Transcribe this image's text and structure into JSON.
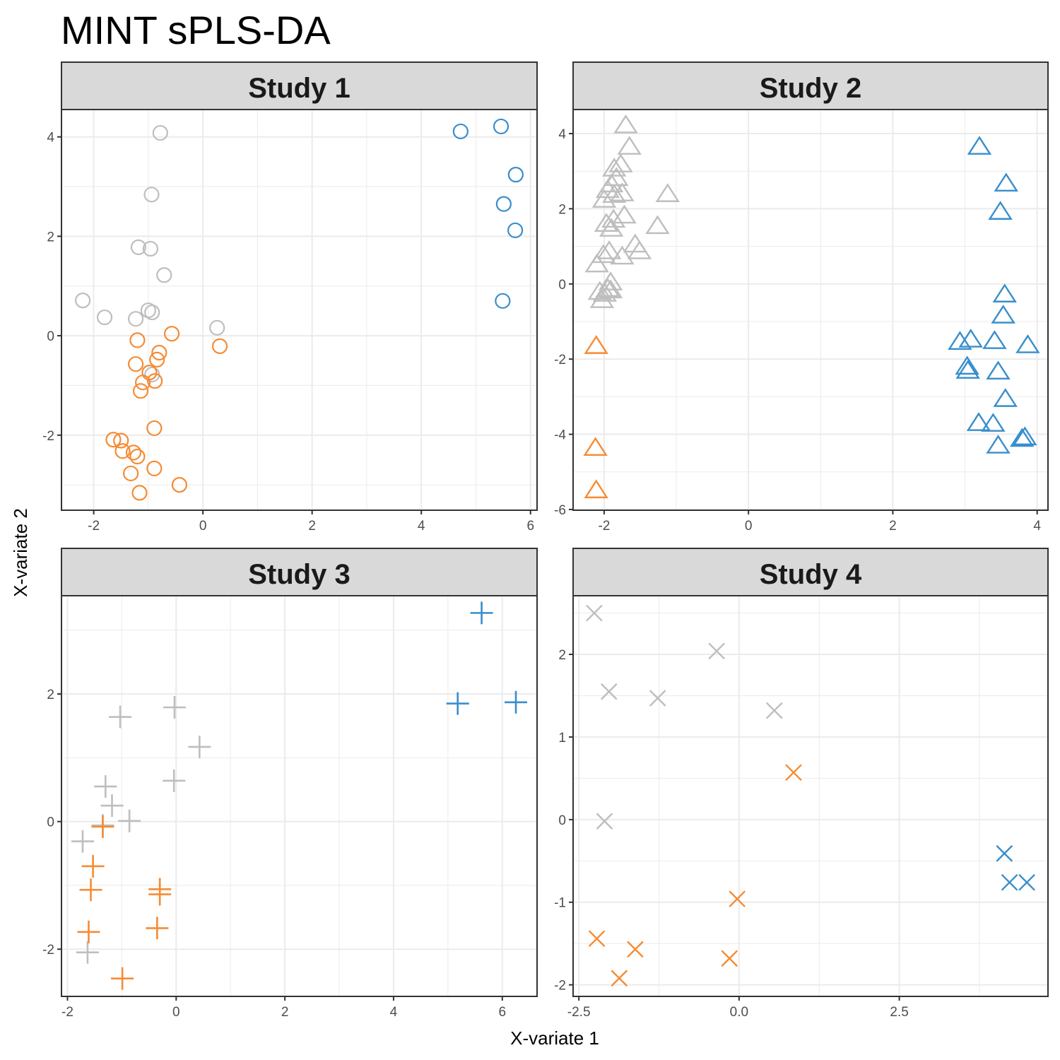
{
  "chart_data": {
    "type": "scatter",
    "title": "MINT sPLS-DA",
    "xlabel": "X-variate 1",
    "ylabel": "X-variate 2",
    "grid": true,
    "legend": "none",
    "group_colors": {
      "grey": "#BEBEBE",
      "orange": "#F68B33",
      "blue": "#388ECC"
    },
    "panels": [
      {
        "name": "Study 1",
        "shape": "circle",
        "xlim": [
          -2.59,
          6.12
        ],
        "ylim": [
          -3.51,
          4.55
        ],
        "xticks": [
          -2,
          0,
          2,
          4,
          6
        ],
        "xtick_labels": [
          "-2",
          "0",
          "2",
          "4",
          "6"
        ],
        "yticks": [
          -2,
          0,
          2,
          4
        ],
        "ytick_labels": [
          "-2",
          "0",
          "2",
          "4"
        ],
        "series": [
          {
            "name": "grey",
            "points": [
              [
                -0.78,
                4.08
              ],
              [
                -0.94,
                2.84
              ],
              [
                -1.18,
                1.78
              ],
              [
                -0.96,
                1.75
              ],
              [
                -0.71,
                1.22
              ],
              [
                -2.2,
                0.71
              ],
              [
                -1.8,
                0.37
              ],
              [
                -1.23,
                0.34
              ],
              [
                -1.0,
                0.51
              ],
              [
                -0.93,
                0.47
              ],
              [
                0.26,
                0.16
              ],
              [
                -0.93,
                -0.78
              ]
            ]
          },
          {
            "name": "orange",
            "points": [
              [
                -0.57,
                0.04
              ],
              [
                -1.2,
                -0.09
              ],
              [
                0.31,
                -0.21
              ],
              [
                -0.8,
                -0.34
              ],
              [
                -0.84,
                -0.48
              ],
              [
                -1.23,
                -0.57
              ],
              [
                -0.98,
                -0.74
              ],
              [
                -0.88,
                -0.91
              ],
              [
                -1.1,
                -0.94
              ],
              [
                -1.14,
                -1.11
              ],
              [
                -0.89,
                -1.86
              ],
              [
                -1.64,
                -2.09
              ],
              [
                -1.5,
                -2.11
              ],
              [
                -1.47,
                -2.32
              ],
              [
                -1.27,
                -2.35
              ],
              [
                -1.2,
                -2.43
              ],
              [
                -1.32,
                -2.77
              ],
              [
                -0.89,
                -2.67
              ],
              [
                -0.43,
                -3.0
              ],
              [
                -1.16,
                -3.16
              ]
            ]
          },
          {
            "name": "blue",
            "points": [
              [
                4.72,
                4.11
              ],
              [
                5.46,
                4.21
              ],
              [
                5.73,
                3.24
              ],
              [
                5.51,
                2.65
              ],
              [
                5.72,
                2.12
              ],
              [
                5.49,
                0.7
              ]
            ]
          }
        ]
      },
      {
        "name": "Study 2",
        "shape": "triangle",
        "xlim": [
          -2.43,
          4.15
        ],
        "ylim": [
          -6.02,
          4.64
        ],
        "xticks": [
          -2,
          0,
          2,
          4
        ],
        "xtick_labels": [
          "-2",
          "0",
          "2",
          "4"
        ],
        "yticks": [
          -6,
          -4,
          -2,
          0,
          2,
          4
        ],
        "ytick_labels": [
          "-6",
          "-4",
          "-2",
          "0",
          "2",
          "4"
        ],
        "series": [
          {
            "name": "grey",
            "points": [
              [
                -1.7,
                4.2
              ],
              [
                -1.65,
                3.63
              ],
              [
                -1.77,
                3.16
              ],
              [
                -1.86,
                3.05
              ],
              [
                -1.83,
                2.8
              ],
              [
                -1.9,
                2.63
              ],
              [
                -1.95,
                2.48
              ],
              [
                -1.75,
                2.39
              ],
              [
                -1.86,
                2.35
              ],
              [
                -2.0,
                2.22
              ],
              [
                -1.12,
                2.37
              ],
              [
                -1.72,
                1.8
              ],
              [
                -1.87,
                1.69
              ],
              [
                -1.97,
                1.58
              ],
              [
                -1.9,
                1.45
              ],
              [
                -1.26,
                1.52
              ],
              [
                -1.57,
                1.03
              ],
              [
                -1.51,
                0.85
              ],
              [
                -1.93,
                0.85
              ],
              [
                -2.01,
                0.75
              ],
              [
                -1.75,
                0.71
              ],
              [
                -2.1,
                0.5
              ],
              [
                -1.91,
                0.02
              ],
              [
                -1.95,
                -0.15
              ],
              [
                -1.91,
                -0.19
              ],
              [
                -2.06,
                -0.23
              ],
              [
                -1.99,
                -0.28
              ],
              [
                -2.03,
                -0.45
              ]
            ]
          },
          {
            "name": "orange",
            "points": [
              [
                -2.11,
                -1.67
              ],
              [
                -2.12,
                -4.38
              ],
              [
                -2.11,
                -5.51
              ]
            ]
          },
          {
            "name": "blue",
            "points": [
              [
                3.2,
                3.63
              ],
              [
                3.57,
                2.65
              ],
              [
                3.49,
                1.9
              ],
              [
                3.55,
                -0.3
              ],
              [
                3.53,
                -0.86
              ],
              [
                2.93,
                -1.56
              ],
              [
                3.08,
                -1.5
              ],
              [
                3.41,
                -1.54
              ],
              [
                3.87,
                -1.65
              ],
              [
                3.04,
                -2.33
              ],
              [
                3.03,
                -2.22
              ],
              [
                3.46,
                -2.35
              ],
              [
                3.56,
                -3.08
              ],
              [
                3.19,
                -3.72
              ],
              [
                3.39,
                -3.74
              ],
              [
                3.83,
                -4.1
              ],
              [
                3.79,
                -4.14
              ],
              [
                3.46,
                -4.32
              ]
            ]
          }
        ]
      },
      {
        "name": "Study 3",
        "shape": "plus",
        "xlim": [
          -2.11,
          6.64
        ],
        "ylim": [
          -2.74,
          3.54
        ],
        "xticks": [
          -2,
          0,
          2,
          4,
          6
        ],
        "xtick_labels": [
          "-2",
          "0",
          "2",
          "4",
          "6"
        ],
        "yticks": [
          -2,
          0,
          2
        ],
        "ytick_labels": [
          "-2",
          "0",
          "2"
        ],
        "series": [
          {
            "name": "grey",
            "points": [
              [
                -1.03,
                1.64
              ],
              [
                -0.03,
                1.79
              ],
              [
                0.43,
                1.17
              ],
              [
                -0.04,
                0.64
              ],
              [
                -1.3,
                0.55
              ],
              [
                -1.18,
                0.25
              ],
              [
                -0.86,
                0.01
              ],
              [
                -1.35,
                -0.06
              ],
              [
                -1.72,
                -0.31
              ],
              [
                -1.63,
                -2.05
              ]
            ]
          },
          {
            "name": "orange",
            "points": [
              [
                -1.35,
                -0.08
              ],
              [
                -1.53,
                -0.7
              ],
              [
                -1.57,
                -1.07
              ],
              [
                -0.3,
                -1.06
              ],
              [
                -0.3,
                -1.14
              ],
              [
                -0.35,
                -1.67
              ],
              [
                -1.61,
                -1.73
              ],
              [
                -0.99,
                -2.46
              ]
            ]
          },
          {
            "name": "blue",
            "points": [
              [
                5.62,
                3.27
              ],
              [
                5.18,
                1.85
              ],
              [
                6.25,
                1.87
              ]
            ]
          }
        ]
      },
      {
        "name": "Study 4",
        "shape": "cross",
        "xlim": [
          -2.59,
          4.82
        ],
        "ylim": [
          -2.14,
          2.71
        ],
        "xticks": [
          -2.5,
          0,
          2.5
        ],
        "xtick_labels": [
          "-2.5",
          "0.0",
          "2.5"
        ],
        "yticks": [
          -2,
          -1,
          0,
          1,
          2
        ],
        "ytick_labels": [
          "-2",
          "-1",
          "0",
          "1",
          "2"
        ],
        "series": [
          {
            "name": "grey",
            "points": [
              [
                -2.26,
                2.5
              ],
              [
                -0.35,
                2.04
              ],
              [
                -2.03,
                1.55
              ],
              [
                -1.27,
                1.47
              ],
              [
                0.55,
                1.32
              ],
              [
                -2.1,
                -0.02
              ]
            ]
          },
          {
            "name": "orange",
            "points": [
              [
                0.85,
                0.57
              ],
              [
                -0.03,
                -0.96
              ],
              [
                -2.22,
                -1.44
              ],
              [
                -1.62,
                -1.57
              ],
              [
                -0.15,
                -1.68
              ],
              [
                -1.87,
                -1.92
              ]
            ]
          },
          {
            "name": "blue",
            "points": [
              [
                4.14,
                -0.41
              ],
              [
                4.22,
                -0.76
              ],
              [
                4.49,
                -0.76
              ]
            ]
          }
        ]
      }
    ]
  }
}
